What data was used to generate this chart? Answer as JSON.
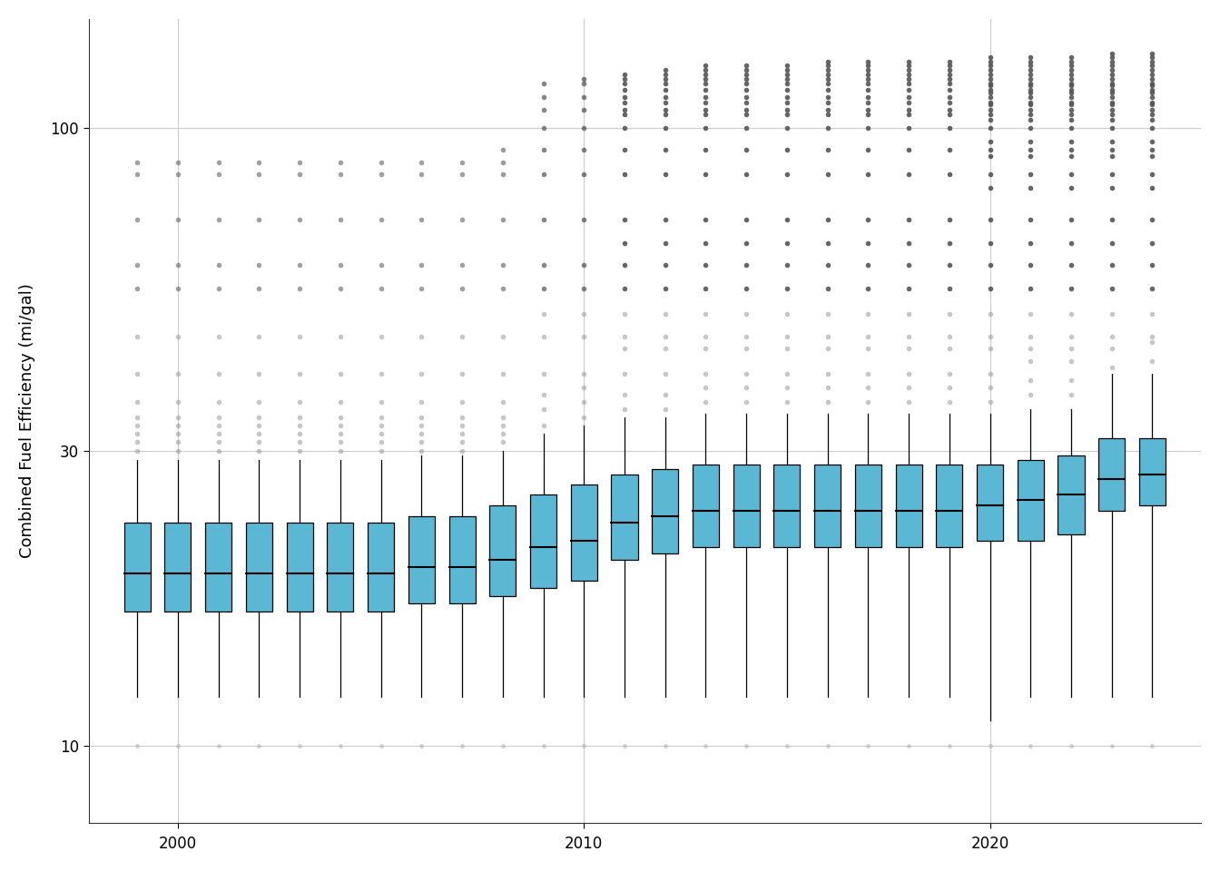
{
  "years": [
    1999,
    2000,
    2001,
    2002,
    2003,
    2004,
    2005,
    2006,
    2007,
    2008,
    2009,
    2010,
    2011,
    2012,
    2013,
    2014,
    2015,
    2016,
    2017,
    2018,
    2019,
    2020,
    2021,
    2022,
    2023,
    2024
  ],
  "box_stats": {
    "1999": {
      "q1": 16.5,
      "median": 19.0,
      "q3": 23.0,
      "whisker_low": 12.0,
      "whisker_high": 29.0
    },
    "2000": {
      "q1": 16.5,
      "median": 19.0,
      "q3": 23.0,
      "whisker_low": 12.0,
      "whisker_high": 29.0
    },
    "2001": {
      "q1": 16.5,
      "median": 19.0,
      "q3": 23.0,
      "whisker_low": 12.0,
      "whisker_high": 29.0
    },
    "2002": {
      "q1": 16.5,
      "median": 19.0,
      "q3": 23.0,
      "whisker_low": 12.0,
      "whisker_high": 29.0
    },
    "2003": {
      "q1": 16.5,
      "median": 19.0,
      "q3": 23.0,
      "whisker_low": 12.0,
      "whisker_high": 29.0
    },
    "2004": {
      "q1": 16.5,
      "median": 19.0,
      "q3": 23.0,
      "whisker_low": 12.0,
      "whisker_high": 29.0
    },
    "2005": {
      "q1": 16.5,
      "median": 19.0,
      "q3": 23.0,
      "whisker_low": 12.0,
      "whisker_high": 29.0
    },
    "2006": {
      "q1": 17.0,
      "median": 19.5,
      "q3": 23.5,
      "whisker_low": 12.0,
      "whisker_high": 29.5
    },
    "2007": {
      "q1": 17.0,
      "median": 19.5,
      "q3": 23.5,
      "whisker_low": 12.0,
      "whisker_high": 29.5
    },
    "2008": {
      "q1": 17.5,
      "median": 20.0,
      "q3": 24.5,
      "whisker_low": 12.0,
      "whisker_high": 30.0
    },
    "2009": {
      "q1": 18.0,
      "median": 21.0,
      "q3": 25.5,
      "whisker_low": 12.0,
      "whisker_high": 32.0
    },
    "2010": {
      "q1": 18.5,
      "median": 21.5,
      "q3": 26.5,
      "whisker_low": 12.0,
      "whisker_high": 33.0
    },
    "2011": {
      "q1": 20.0,
      "median": 23.0,
      "q3": 27.5,
      "whisker_low": 12.0,
      "whisker_high": 34.0
    },
    "2012": {
      "q1": 20.5,
      "median": 23.5,
      "q3": 28.0,
      "whisker_low": 12.0,
      "whisker_high": 34.0
    },
    "2013": {
      "q1": 21.0,
      "median": 24.0,
      "q3": 28.5,
      "whisker_low": 12.0,
      "whisker_high": 34.5
    },
    "2014": {
      "q1": 21.0,
      "median": 24.0,
      "q3": 28.5,
      "whisker_low": 12.0,
      "whisker_high": 34.5
    },
    "2015": {
      "q1": 21.0,
      "median": 24.0,
      "q3": 28.5,
      "whisker_low": 12.0,
      "whisker_high": 34.5
    },
    "2016": {
      "q1": 21.0,
      "median": 24.0,
      "q3": 28.5,
      "whisker_low": 12.0,
      "whisker_high": 34.5
    },
    "2017": {
      "q1": 21.0,
      "median": 24.0,
      "q3": 28.5,
      "whisker_low": 12.0,
      "whisker_high": 34.5
    },
    "2018": {
      "q1": 21.0,
      "median": 24.0,
      "q3": 28.5,
      "whisker_low": 12.0,
      "whisker_high": 34.5
    },
    "2019": {
      "q1": 21.0,
      "median": 24.0,
      "q3": 28.5,
      "whisker_low": 12.0,
      "whisker_high": 34.5
    },
    "2020": {
      "q1": 21.5,
      "median": 24.5,
      "q3": 28.5,
      "whisker_low": 11.0,
      "whisker_high": 34.5
    },
    "2021": {
      "q1": 21.5,
      "median": 25.0,
      "q3": 29.0,
      "whisker_low": 12.0,
      "whisker_high": 35.0
    },
    "2022": {
      "q1": 22.0,
      "median": 25.5,
      "q3": 29.5,
      "whisker_low": 12.0,
      "whisker_high": 35.0
    },
    "2023": {
      "q1": 24.0,
      "median": 27.0,
      "q3": 31.5,
      "whisker_low": 12.0,
      "whisker_high": 40.0
    },
    "2024": {
      "q1": 24.5,
      "median": 27.5,
      "q3": 31.5,
      "whisker_low": 12.0,
      "whisker_high": 40.0
    }
  },
  "outlier_data": {
    "1999": {
      "low": [
        10.0
      ],
      "mid": [
        30.0,
        31.0,
        32.0,
        33.0,
        34.0,
        36.0,
        40.0,
        46.0
      ],
      "high": [
        55.0,
        60.0,
        71.0,
        84.0,
        88.0
      ]
    },
    "2000": {
      "low": [
        10.0
      ],
      "mid": [
        30.0,
        31.0,
        32.0,
        33.0,
        34.0,
        36.0,
        40.0,
        46.0
      ],
      "high": [
        55.0,
        60.0,
        71.0,
        84.0,
        88.0
      ]
    },
    "2001": {
      "low": [
        10.0
      ],
      "mid": [
        30.0,
        31.0,
        32.0,
        33.0,
        34.0,
        36.0,
        40.0,
        46.0
      ],
      "high": [
        55.0,
        60.0,
        71.0,
        84.0,
        88.0
      ]
    },
    "2002": {
      "low": [
        10.0
      ],
      "mid": [
        30.0,
        31.0,
        32.0,
        33.0,
        34.0,
        36.0,
        40.0,
        46.0
      ],
      "high": [
        55.0,
        60.0,
        71.0,
        84.0,
        88.0
      ]
    },
    "2003": {
      "low": [
        10.0
      ],
      "mid": [
        30.0,
        31.0,
        32.0,
        33.0,
        34.0,
        36.0,
        40.0,
        46.0
      ],
      "high": [
        55.0,
        60.0,
        71.0,
        84.0,
        88.0
      ]
    },
    "2004": {
      "low": [
        10.0
      ],
      "mid": [
        30.0,
        31.0,
        32.0,
        33.0,
        34.0,
        36.0,
        40.0,
        46.0
      ],
      "high": [
        55.0,
        60.0,
        71.0,
        84.0,
        88.0
      ]
    },
    "2005": {
      "low": [
        10.0
      ],
      "mid": [
        30.0,
        31.0,
        32.0,
        33.0,
        34.0,
        36.0,
        40.0,
        46.0
      ],
      "high": [
        55.0,
        60.0,
        71.0,
        84.0,
        88.0
      ]
    },
    "2006": {
      "low": [
        10.0
      ],
      "mid": [
        30.0,
        31.0,
        32.0,
        33.0,
        34.0,
        36.0,
        40.0,
        46.0
      ],
      "high": [
        55.0,
        60.0,
        71.0,
        84.0,
        88.0
      ]
    },
    "2007": {
      "low": [
        10.0
      ],
      "mid": [
        30.0,
        31.0,
        32.0,
        33.0,
        34.0,
        36.0,
        40.0,
        46.0
      ],
      "high": [
        55.0,
        60.0,
        71.0,
        84.0,
        88.0
      ]
    },
    "2008": {
      "low": [
        10.0
      ],
      "mid": [
        31.0,
        32.0,
        33.0,
        34.0,
        36.0,
        40.0,
        46.0
      ],
      "high": [
        55.0,
        60.0,
        71.0,
        84.0,
        88.0,
        92.0
      ]
    },
    "2009": {
      "low": [
        10.0
      ],
      "mid": [
        33.0,
        35.0,
        37.0,
        40.0,
        46.0,
        50.0
      ],
      "high": [
        55.0,
        60.0,
        71.0,
        84.0,
        92.0,
        100.0,
        107.0,
        112.0,
        118.0
      ]
    },
    "2010": {
      "low": [
        10.0
      ],
      "mid": [
        34.0,
        36.0,
        38.0,
        40.0,
        46.0,
        50.0
      ],
      "high": [
        55.0,
        60.0,
        71.0,
        84.0,
        92.0,
        100.0,
        107.0,
        112.0,
        118.0,
        120.0
      ]
    },
    "2011": {
      "low": [
        10.0
      ],
      "mid": [
        35.0,
        37.0,
        40.0,
        44.0,
        46.0,
        50.0
      ],
      "high": [
        55.0,
        60.0,
        65.0,
        71.0,
        84.0,
        92.0,
        100.0,
        105.0,
        107.0,
        110.0,
        112.0,
        115.0,
        118.0,
        120.0,
        122.0
      ]
    },
    "2012": {
      "low": [
        10.0
      ],
      "mid": [
        35.0,
        37.0,
        40.0,
        44.0,
        46.0,
        50.0
      ],
      "high": [
        55.0,
        60.0,
        65.0,
        71.0,
        84.0,
        92.0,
        100.0,
        105.0,
        107.0,
        110.0,
        112.0,
        115.0,
        118.0,
        120.0,
        122.0,
        124.0
      ]
    },
    "2013": {
      "low": [
        10.0
      ],
      "mid": [
        36.0,
        38.0,
        40.0,
        44.0,
        46.0,
        50.0
      ],
      "high": [
        55.0,
        60.0,
        65.0,
        71.0,
        84.0,
        92.0,
        100.0,
        105.0,
        107.0,
        110.0,
        112.0,
        115.0,
        118.0,
        120.0,
        122.0,
        124.0,
        126.0
      ]
    },
    "2014": {
      "low": [
        10.0
      ],
      "mid": [
        36.0,
        38.0,
        40.0,
        44.0,
        46.0,
        50.0
      ],
      "high": [
        55.0,
        60.0,
        65.0,
        71.0,
        84.0,
        92.0,
        100.0,
        105.0,
        107.0,
        110.0,
        112.0,
        115.0,
        118.0,
        120.0,
        122.0,
        124.0,
        126.0
      ]
    },
    "2015": {
      "low": [
        10.0
      ],
      "mid": [
        36.0,
        38.0,
        40.0,
        44.0,
        46.0,
        50.0
      ],
      "high": [
        55.0,
        60.0,
        65.0,
        71.0,
        84.0,
        92.0,
        100.0,
        105.0,
        107.0,
        110.0,
        112.0,
        115.0,
        118.0,
        120.0,
        122.0,
        124.0,
        126.0
      ]
    },
    "2016": {
      "low": [
        10.0
      ],
      "mid": [
        36.0,
        38.0,
        40.0,
        44.0,
        46.0,
        50.0
      ],
      "high": [
        55.0,
        60.0,
        65.0,
        71.0,
        84.0,
        92.0,
        100.0,
        105.0,
        107.0,
        110.0,
        112.0,
        115.0,
        118.0,
        120.0,
        122.0,
        124.0,
        126.0,
        128.0
      ]
    },
    "2017": {
      "low": [
        10.0
      ],
      "mid": [
        36.0,
        38.0,
        40.0,
        44.0,
        46.0,
        50.0
      ],
      "high": [
        55.0,
        60.0,
        65.0,
        71.0,
        84.0,
        92.0,
        100.0,
        105.0,
        107.0,
        110.0,
        112.0,
        115.0,
        118.0,
        120.0,
        122.0,
        124.0,
        126.0,
        128.0
      ]
    },
    "2018": {
      "low": [
        10.0
      ],
      "mid": [
        36.0,
        38.0,
        40.0,
        44.0,
        46.0,
        50.0
      ],
      "high": [
        55.0,
        60.0,
        65.0,
        71.0,
        84.0,
        92.0,
        100.0,
        105.0,
        107.0,
        110.0,
        112.0,
        115.0,
        118.0,
        120.0,
        122.0,
        124.0,
        126.0,
        128.0
      ]
    },
    "2019": {
      "low": [
        10.0
      ],
      "mid": [
        36.0,
        38.0,
        40.0,
        44.0,
        46.0,
        50.0
      ],
      "high": [
        55.0,
        60.0,
        65.0,
        71.0,
        84.0,
        92.0,
        100.0,
        105.0,
        107.0,
        110.0,
        112.0,
        115.0,
        118.0,
        120.0,
        122.0,
        124.0,
        126.0,
        128.0
      ]
    },
    "2020": {
      "low": [
        10.0
      ],
      "mid": [
        36.0,
        38.0,
        40.0,
        44.0,
        46.0,
        50.0
      ],
      "high": [
        55.0,
        60.0,
        65.0,
        71.0,
        80.0,
        84.0,
        90.0,
        92.0,
        95.0,
        100.0,
        103.0,
        105.0,
        107.0,
        109.0,
        110.0,
        112.0,
        114.0,
        115.0,
        117.0,
        118.0,
        120.0,
        122.0,
        124.0,
        126.0,
        128.0,
        130.0
      ]
    },
    "2021": {
      "low": [
        10.0
      ],
      "mid": [
        37.0,
        39.0,
        42.0,
        44.0,
        46.0,
        50.0
      ],
      "high": [
        55.0,
        60.0,
        65.0,
        71.0,
        80.0,
        84.0,
        90.0,
        92.0,
        95.0,
        100.0,
        103.0,
        105.0,
        107.0,
        109.0,
        110.0,
        112.0,
        114.0,
        115.0,
        117.0,
        118.0,
        120.0,
        122.0,
        124.0,
        126.0,
        128.0,
        130.0
      ]
    },
    "2022": {
      "low": [
        10.0
      ],
      "mid": [
        37.0,
        39.0,
        42.0,
        44.0,
        46.0,
        50.0
      ],
      "high": [
        55.0,
        60.0,
        65.0,
        71.0,
        80.0,
        84.0,
        90.0,
        92.0,
        95.0,
        100.0,
        103.0,
        105.0,
        107.0,
        109.0,
        110.0,
        112.0,
        114.0,
        115.0,
        117.0,
        118.0,
        120.0,
        122.0,
        124.0,
        126.0,
        128.0,
        130.0
      ]
    },
    "2023": {
      "low": [
        10.0
      ],
      "mid": [
        41.0,
        44.0,
        46.0,
        50.0
      ],
      "high": [
        55.0,
        60.0,
        65.0,
        71.0,
        80.0,
        84.0,
        90.0,
        92.0,
        95.0,
        100.0,
        103.0,
        105.0,
        107.0,
        109.0,
        110.0,
        112.0,
        114.0,
        115.0,
        117.0,
        118.0,
        120.0,
        122.0,
        124.0,
        126.0,
        128.0,
        130.0,
        132.0
      ]
    },
    "2024": {
      "low": [
        10.0
      ],
      "mid": [
        42.0,
        45.0,
        46.0,
        50.0
      ],
      "high": [
        55.0,
        60.0,
        65.0,
        71.0,
        80.0,
        84.0,
        90.0,
        92.0,
        95.0,
        100.0,
        103.0,
        105.0,
        107.0,
        109.0,
        110.0,
        112.0,
        114.0,
        115.0,
        117.0,
        118.0,
        120.0,
        122.0,
        124.0,
        126.0,
        128.0,
        130.0,
        132.0
      ]
    }
  },
  "box_color": "#5BB8D4",
  "box_edge_color": "#000000",
  "median_color": "#000000",
  "whisker_color": "#000000",
  "outlier_color_low": "#aaaaaa",
  "outlier_color_mid": "#999999",
  "outlier_color_high": "#555555",
  "background_color": "#FFFFFF",
  "panel_background": "#FFFFFF",
  "grid_color": "#CCCCCC",
  "ylabel": "Combined Fuel Efficiency (mi/gal)",
  "label_fontsize": 13,
  "tick_fontsize": 12,
  "ylim_low": 7.5,
  "ylim_high": 150,
  "yticks": [
    10,
    30,
    100
  ],
  "box_width": 0.65
}
